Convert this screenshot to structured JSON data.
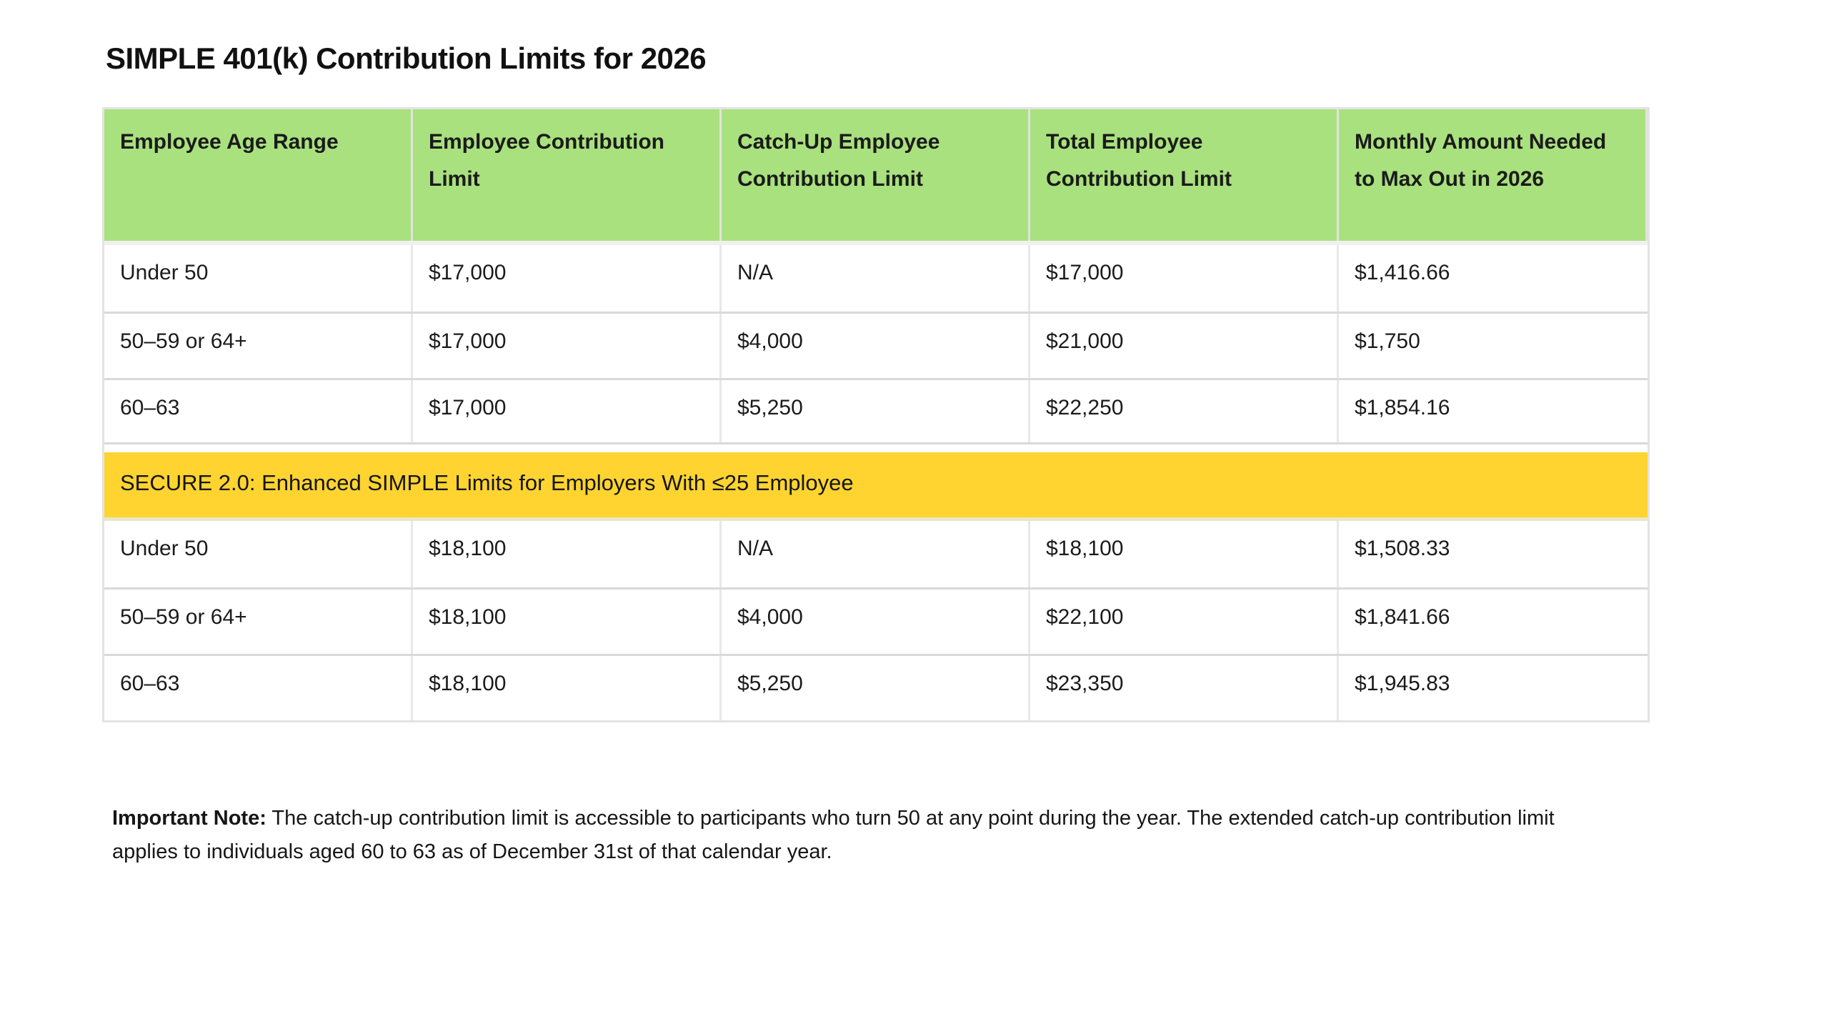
{
  "page": {
    "title": "SIMPLE 401(k) Contribution Limits for 2026"
  },
  "table": {
    "headers": [
      "Employee Age Range",
      "Employee Contribution\nLimit",
      "Catch-Up Employee\nContribution Limit",
      "Total Employee\nContribution Limit",
      "Monthly Amount Needed\nto Max Out in 2026"
    ],
    "standard_rows": [
      [
        "Under 50",
        "$17,000",
        "N/A",
        "$17,000",
        "$1,416.66"
      ],
      [
        "50–59 or 64+",
        "$17,000",
        "$4,000",
        "$21,000",
        "$1,750"
      ],
      [
        "60–63",
        "$17,000",
        "$5,250",
        "$22,250",
        "$1,854.16"
      ]
    ],
    "banner": "SECURE 2.0: Enhanced SIMPLE Limits for Employers With ≤25 Employee",
    "enhanced_rows": [
      [
        "Under 50",
        "$18,100",
        "N/A",
        "$18,100",
        "$1,508.33"
      ],
      [
        "50–59 or 64+",
        "$18,100",
        "$4,000",
        "$22,100",
        "$1,841.66"
      ],
      [
        "60–63",
        "$18,100",
        "$5,250",
        "$23,350",
        "$1,945.83"
      ]
    ]
  },
  "note": {
    "label": "Important Note:",
    "line1": "The catch-up contribution limit is accessible to participants who turn 50 at any point during the year. The extended catch-up contribution limit",
    "line2": "applies to individuals aged 60 to 63 as of December 31st of that calendar year."
  },
  "colors": {
    "header_bg": "#A9E17E",
    "banner_bg": "#FFD431",
    "border_outer": "#E3E3E3",
    "border_row": "#D9D9D9",
    "border_col": "#E8E8E8"
  }
}
